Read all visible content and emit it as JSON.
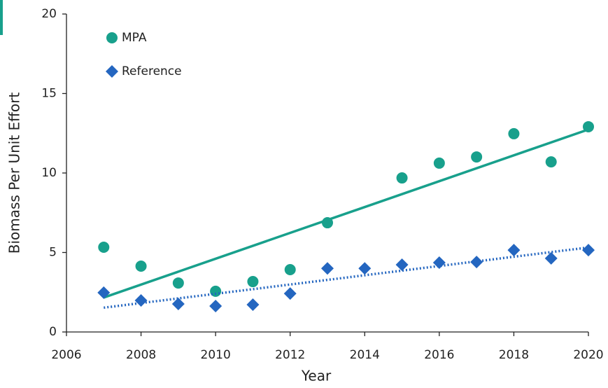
{
  "chart_data": {
    "type": "scatter",
    "x_label": "Year",
    "y_label": "Biomass Per Unit Effort",
    "xlim": [
      2006,
      2020
    ],
    "xticks": [
      2006,
      2008,
      2010,
      2012,
      2014,
      2016,
      2018,
      2020
    ],
    "ylim": [
      0,
      20
    ],
    "yticks": [
      0,
      5,
      10,
      15,
      20
    ],
    "legend": "upper left",
    "series": [
      {
        "name": "MPA",
        "color": "#18a08c",
        "marker": "circle",
        "trendline": "solid",
        "x": [
          2007,
          2008,
          2009,
          2010,
          2011,
          2012,
          2013,
          2015,
          2016,
          2017,
          2018,
          2019,
          2020
        ],
        "values": [
          5.33,
          4.14,
          3.08,
          2.56,
          3.17,
          3.92,
          6.87,
          9.69,
          10.62,
          11.01,
          12.47,
          10.7,
          12.91
        ]
      },
      {
        "name": "Reference",
        "color": "#2466c0",
        "marker": "diamond",
        "trendline": "dotted",
        "x": [
          2007,
          2008,
          2009,
          2010,
          2011,
          2012,
          2013,
          2014,
          2015,
          2016,
          2017,
          2018,
          2019,
          2020
        ],
        "values": [
          2.47,
          1.98,
          1.76,
          1.63,
          1.72,
          2.42,
          4.0,
          4.0,
          4.23,
          4.36,
          4.4,
          5.15,
          4.63,
          5.15
        ]
      }
    ]
  }
}
